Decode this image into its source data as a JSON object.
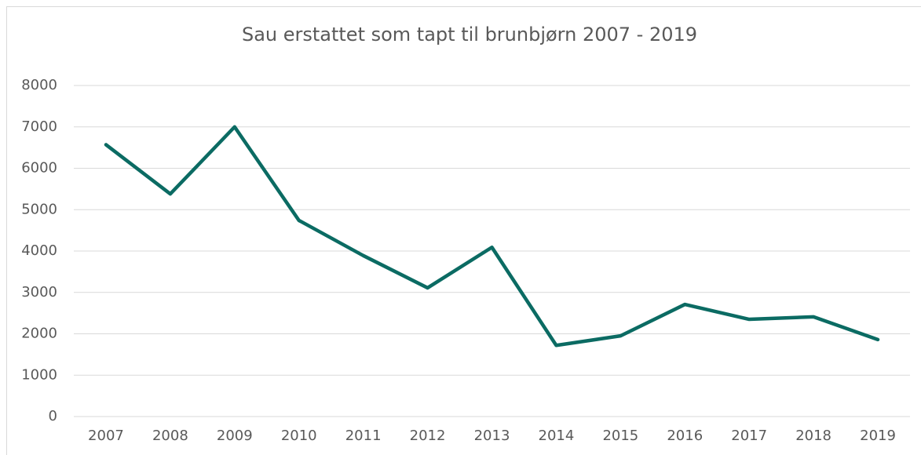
{
  "chart_data": {
    "type": "line",
    "title": "Sau erstattet som tapt til brunbjørn 2007 - 2019",
    "categories": [
      "2007",
      "2008",
      "2009",
      "2010",
      "2011",
      "2012",
      "2013",
      "2014",
      "2015",
      "2016",
      "2017",
      "2018",
      "2019"
    ],
    "values": [
      6570,
      5380,
      7000,
      4740,
      3890,
      3110,
      4090,
      1720,
      1950,
      2710,
      2350,
      2410,
      1860
    ],
    "color": "#0b6b63",
    "ylim": [
      0,
      8000
    ],
    "yticks": [
      0,
      1000,
      2000,
      3000,
      4000,
      5000,
      6000,
      7000,
      8000
    ],
    "grid": true
  }
}
